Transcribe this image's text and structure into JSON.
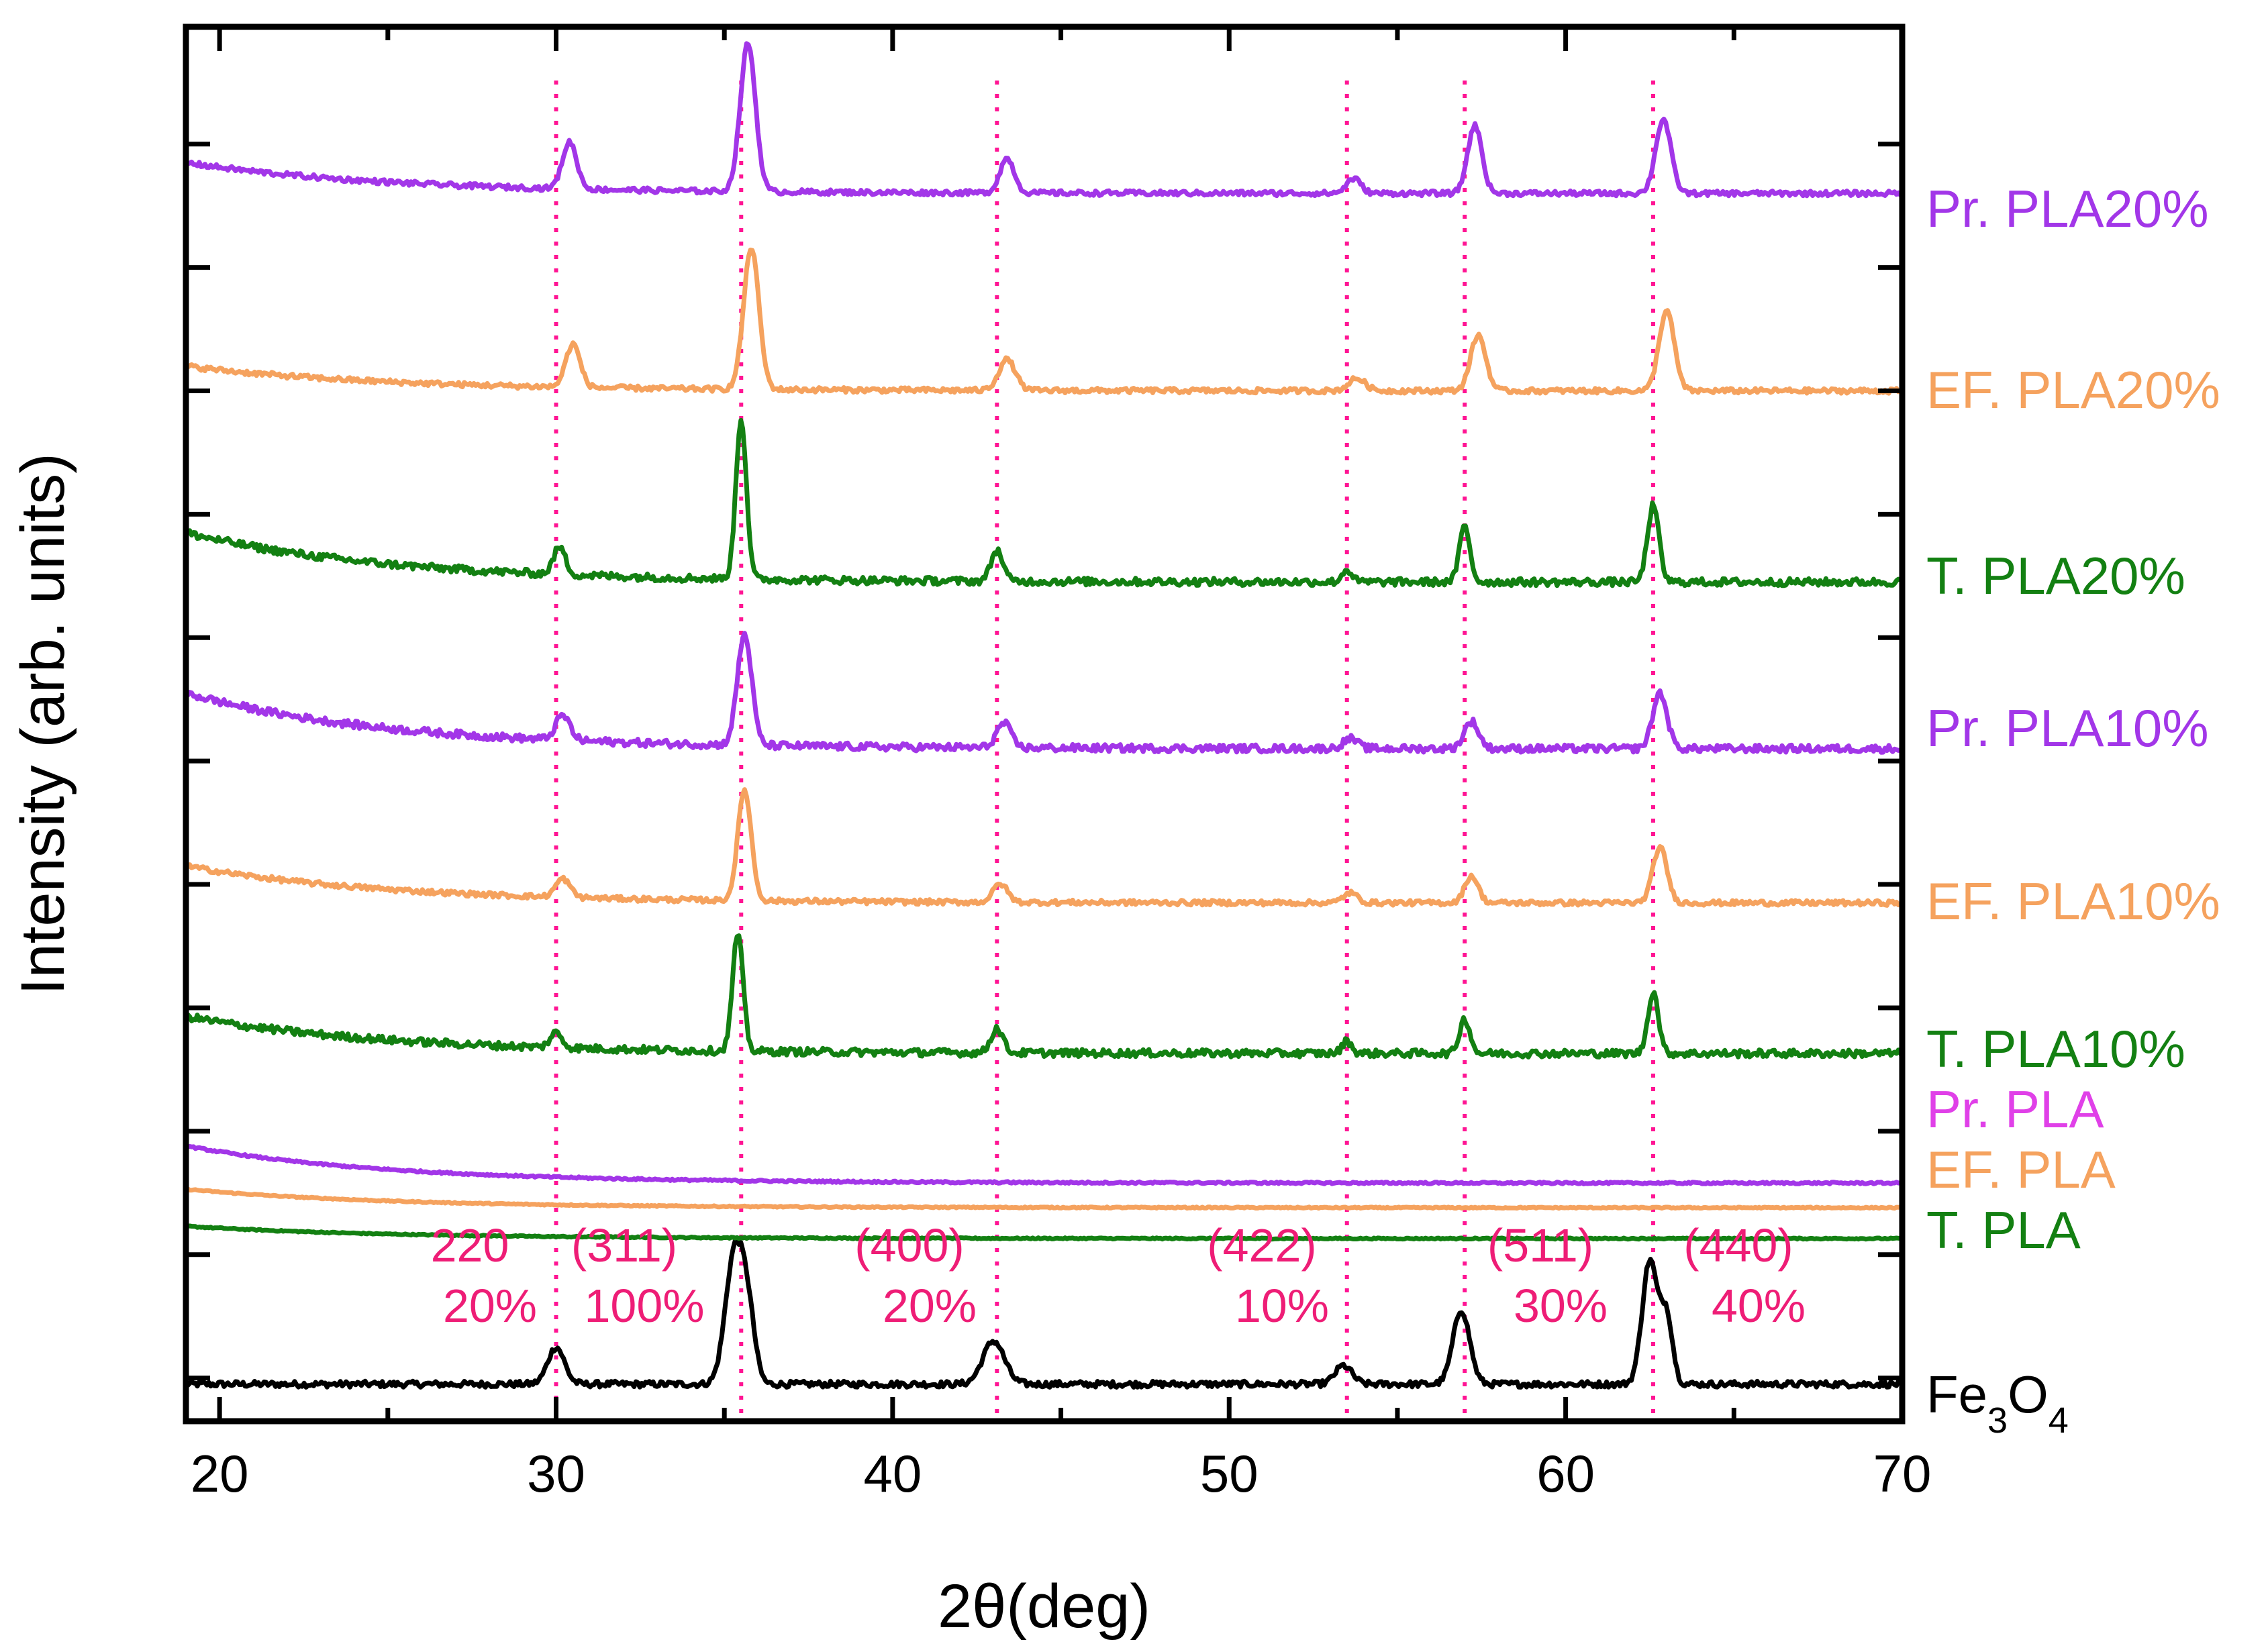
{
  "chart_data": {
    "type": "line",
    "title": "",
    "xlabel": "2θ(deg)",
    "ylabel": "Intensity (arb. units)",
    "xlim": [
      19,
      70
    ],
    "ylim": [
      0,
      11.3
    ],
    "xticks": [
      20,
      30,
      40,
      50,
      60,
      70
    ],
    "yticks_unlabeled": [
      0.35,
      1.35,
      2.35,
      3.35,
      4.35,
      5.35,
      6.35,
      7.35,
      8.35,
      9.35,
      10.35,
      11.35
    ],
    "grid": false,
    "reference_lines": {
      "color": "#ff1493",
      "style": "dotted",
      "x": [
        30.0,
        35.5,
        43.1,
        53.5,
        57.0,
        62.6
      ]
    },
    "peak_annotations": [
      {
        "hkl": "220",
        "intensity": "20%",
        "x": 30.0
      },
      {
        "hkl": "(311)",
        "intensity": "100%",
        "x": 35.5
      },
      {
        "hkl": "(400)",
        "intensity": "20%",
        "x": 43.1
      },
      {
        "hkl": "(422)",
        "intensity": "10%",
        "x": 53.5
      },
      {
        "hkl": "(511)",
        "intensity": "30%",
        "x": 57.0
      },
      {
        "hkl": "(440)",
        "intensity": "40%",
        "x": 62.6
      }
    ],
    "series": [
      {
        "name": "Fe3O4",
        "label_main": "Fe",
        "sub1": "3",
        "mid": "O",
        "sub2": "4",
        "color": "#000000",
        "offset": 0.3,
        "slope": 0,
        "noise": 0.05,
        "peaks": [
          [
            30.0,
            0.3,
            0.35
          ],
          [
            35.3,
            1.05,
            0.38
          ],
          [
            35.7,
            0.5,
            0.3
          ],
          [
            43.0,
            0.35,
            0.45
          ],
          [
            53.4,
            0.15,
            0.35
          ],
          [
            56.9,
            0.6,
            0.35
          ],
          [
            62.5,
            1.0,
            0.32
          ],
          [
            63.0,
            0.55,
            0.25
          ]
        ]
      },
      {
        "name": "T. PLA",
        "color": "#138012",
        "label_color": "#138012",
        "offset": 1.48,
        "slope": 0.1,
        "noise": 0.01,
        "peaks": []
      },
      {
        "name": "EF. PLA",
        "color": "#f5a25e",
        "label_color": "#f5a25e",
        "offset": 1.73,
        "slope": 0.15,
        "noise": 0.01,
        "peaks": []
      },
      {
        "name": "Pr. PLA",
        "color": "#a236e8",
        "label_color": "#e040e8",
        "offset": 1.93,
        "slope": 0.3,
        "noise": 0.015,
        "peaks": []
      },
      {
        "name": "T. PLA10%",
        "color": "#138012",
        "label_color": "#138012",
        "offset": 2.98,
        "slope": 0.3,
        "noise": 0.06,
        "peaks": [
          [
            30.0,
            0.12,
            0.25
          ],
          [
            35.4,
            0.95,
            0.22
          ],
          [
            43.1,
            0.2,
            0.25
          ],
          [
            53.5,
            0.1,
            0.2
          ],
          [
            57.0,
            0.28,
            0.22
          ],
          [
            62.6,
            0.5,
            0.22
          ]
        ]
      },
      {
        "name": "EF. PLA10%",
        "color": "#f5a25e",
        "label_color": "#f5a25e",
        "offset": 4.2,
        "slope": 0.3,
        "noise": 0.04,
        "peaks": [
          [
            30.2,
            0.15,
            0.3
          ],
          [
            35.6,
            0.9,
            0.28
          ],
          [
            43.2,
            0.15,
            0.3
          ],
          [
            53.6,
            0.08,
            0.3
          ],
          [
            57.2,
            0.22,
            0.28
          ],
          [
            62.8,
            0.45,
            0.3
          ]
        ]
      },
      {
        "name": "Pr. PLA10%",
        "color": "#a236e8",
        "label_color": "#a236e8",
        "offset": 5.45,
        "slope": 0.45,
        "noise": 0.06,
        "peaks": [
          [
            30.2,
            0.2,
            0.3
          ],
          [
            35.6,
            0.9,
            0.3
          ],
          [
            43.3,
            0.2,
            0.3
          ],
          [
            53.6,
            0.08,
            0.3
          ],
          [
            57.2,
            0.22,
            0.3
          ],
          [
            62.8,
            0.45,
            0.3
          ]
        ]
      },
      {
        "name": "T. PLA20%",
        "color": "#138012",
        "label_color": "#138012",
        "offset": 6.8,
        "slope": 0.4,
        "noise": 0.06,
        "peaks": [
          [
            30.1,
            0.22,
            0.25
          ],
          [
            35.5,
            1.3,
            0.22
          ],
          [
            43.1,
            0.25,
            0.25
          ],
          [
            53.5,
            0.1,
            0.2
          ],
          [
            57.0,
            0.45,
            0.22
          ],
          [
            62.6,
            0.62,
            0.24
          ]
        ]
      },
      {
        "name": "EF. PLA20%",
        "color": "#f5a25e",
        "label_color": "#f5a25e",
        "offset": 8.35,
        "slope": 0.2,
        "noise": 0.04,
        "peaks": [
          [
            30.5,
            0.35,
            0.3
          ],
          [
            35.8,
            1.15,
            0.32
          ],
          [
            43.4,
            0.25,
            0.35
          ],
          [
            53.8,
            0.1,
            0.35
          ],
          [
            57.4,
            0.45,
            0.32
          ],
          [
            63.0,
            0.65,
            0.32
          ]
        ]
      },
      {
        "name": "Pr. PLA20%",
        "color": "#a236e8",
        "label_color": "#a236e8",
        "offset": 9.95,
        "slope": 0.25,
        "noise": 0.04,
        "peaks": [
          [
            30.4,
            0.38,
            0.3
          ],
          [
            35.7,
            1.2,
            0.32
          ],
          [
            43.4,
            0.28,
            0.3
          ],
          [
            53.7,
            0.12,
            0.3
          ],
          [
            57.3,
            0.55,
            0.3
          ],
          [
            62.9,
            0.6,
            0.32
          ]
        ]
      }
    ]
  }
}
